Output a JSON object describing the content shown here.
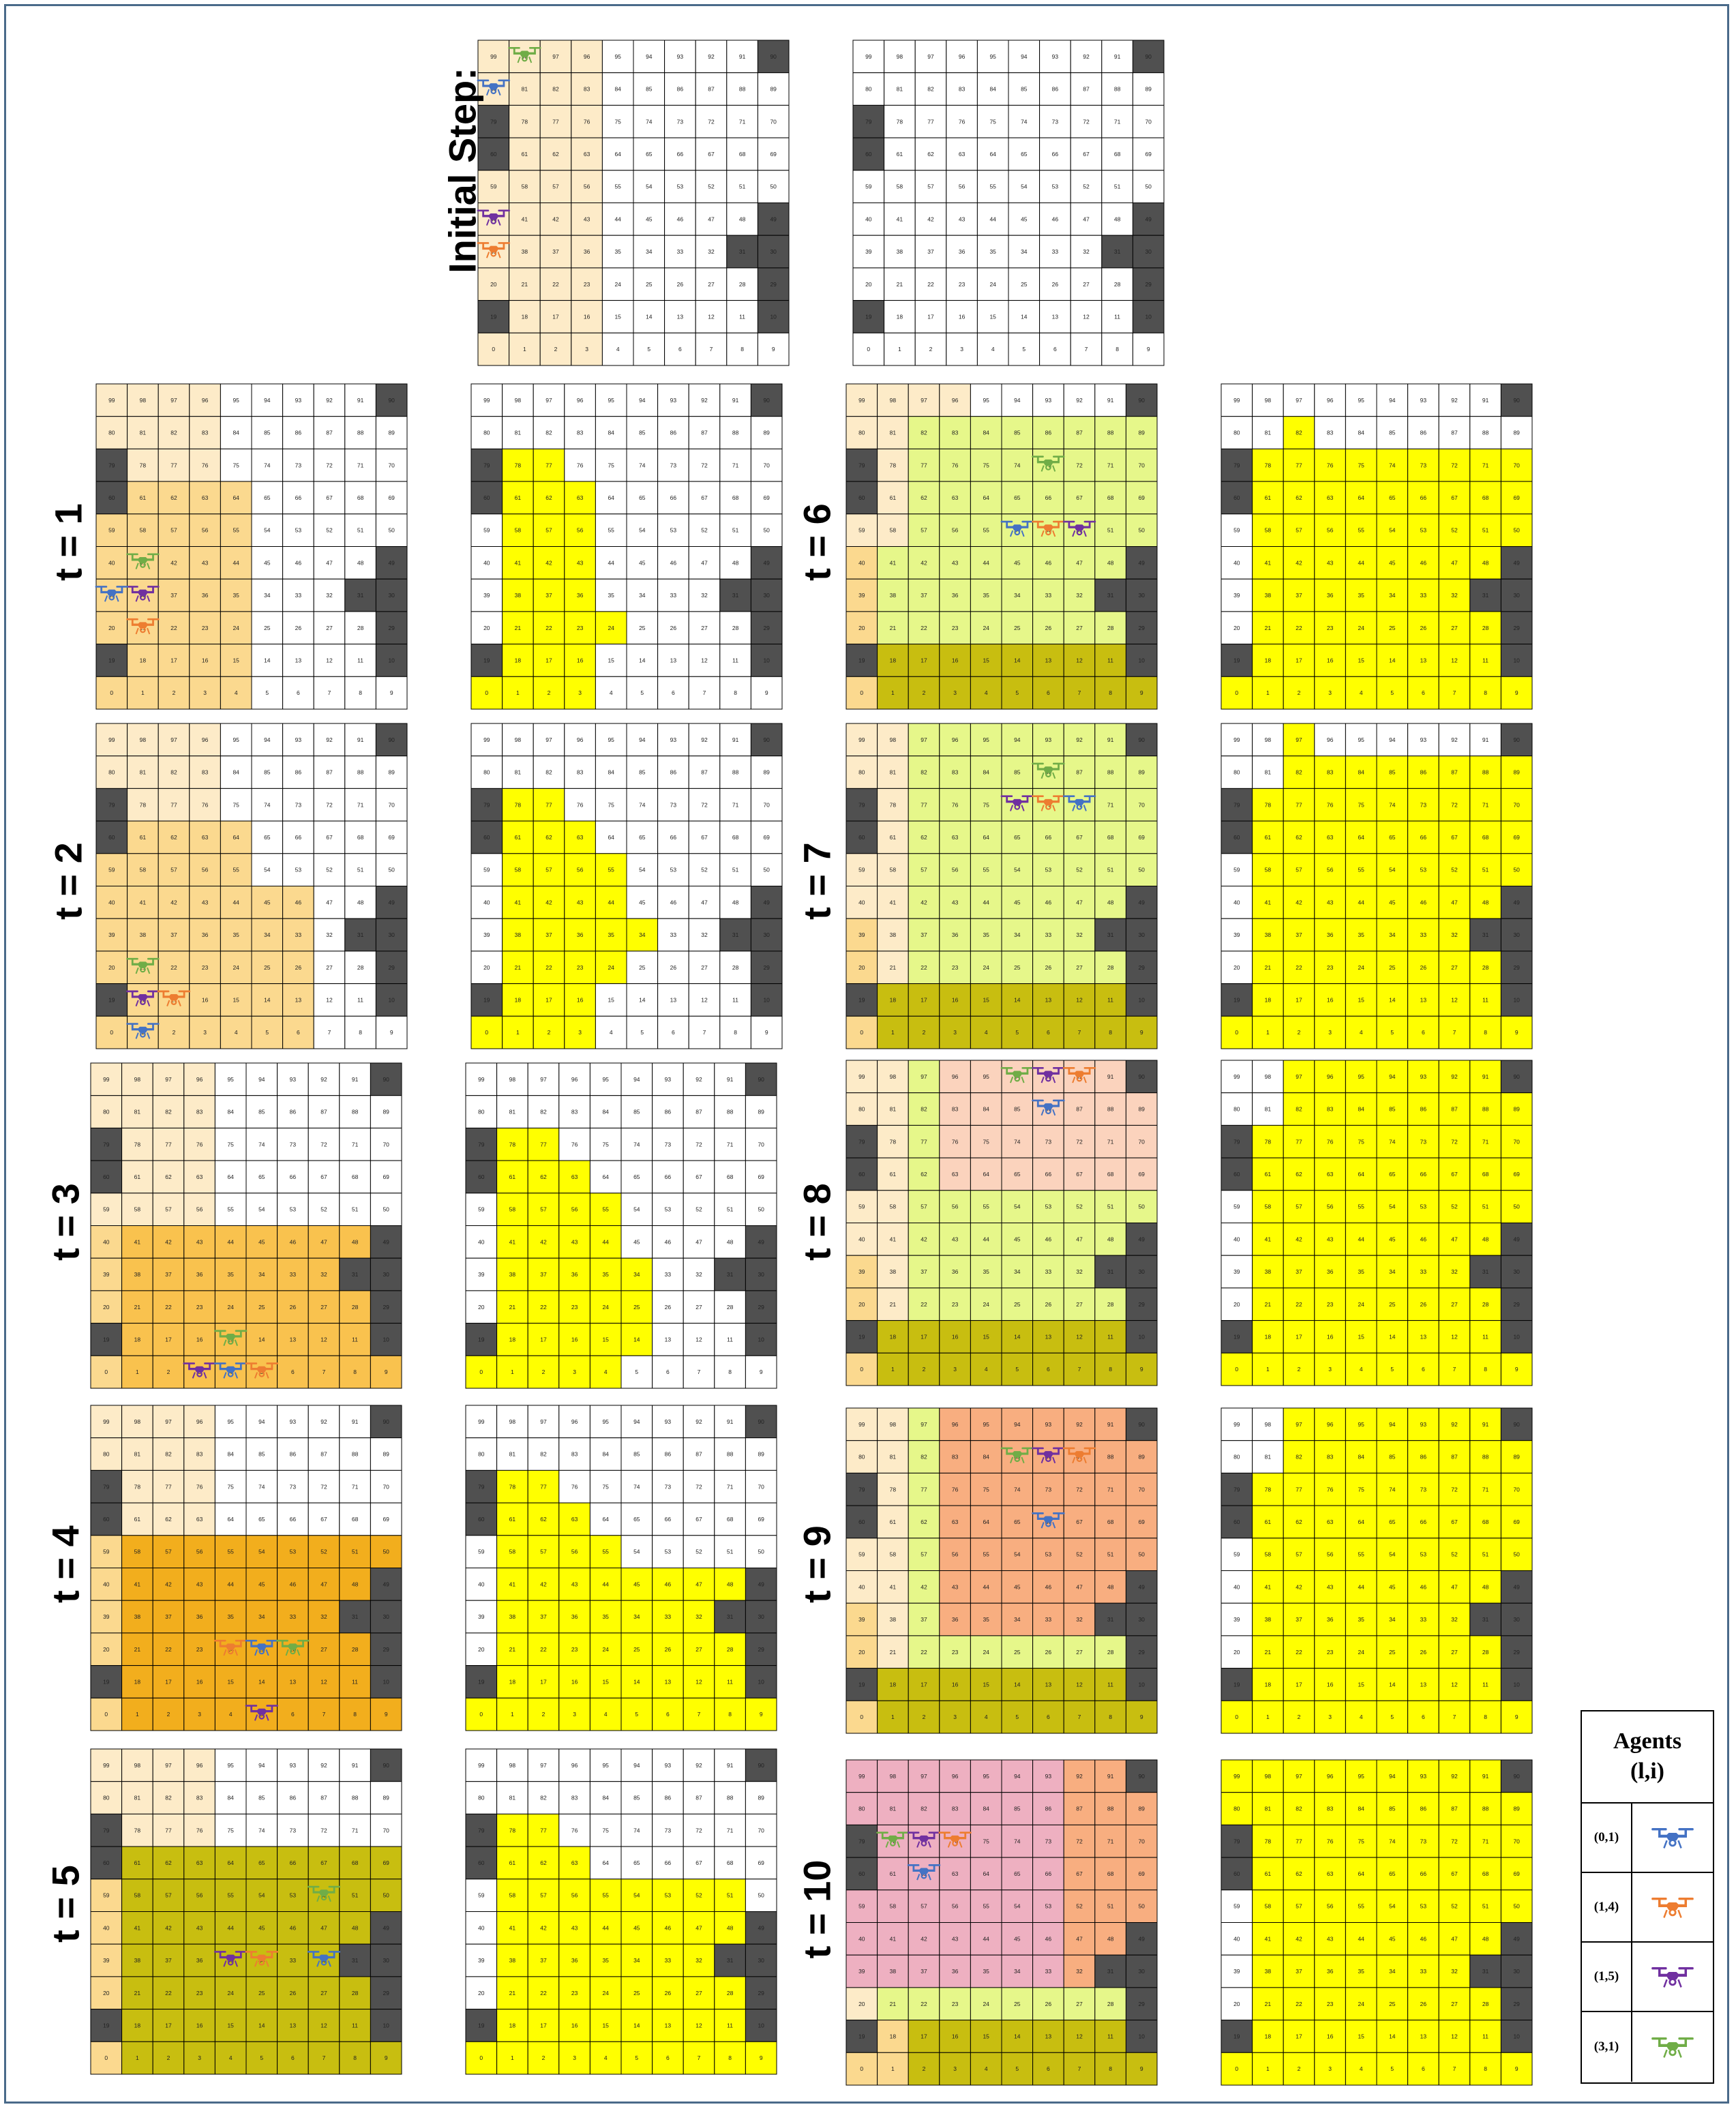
{
  "initial_label": "Initial Step:",
  "step_labels": [
    "t = 1",
    "t = 2",
    "t = 3",
    "t = 4",
    "t = 5",
    "t = 6",
    "t = 7",
    "t = 8",
    "t = 9",
    "t = 10"
  ],
  "legend": {
    "title_line1": "Agents",
    "title_line2": "(l,i)",
    "agents": [
      {
        "id": "(0,1)",
        "color": "#4472C4",
        "icon": "drone-icon"
      },
      {
        "id": "(1,4)",
        "color": "#ED7D31",
        "icon": "drone-icon"
      },
      {
        "id": "(1,5)",
        "color": "#7030A0",
        "icon": "drone-icon"
      },
      {
        "id": "(3,1)",
        "color": "#70AD47",
        "icon": "drone-icon"
      }
    ]
  },
  "grid": {
    "rows": 10,
    "cols": 10,
    "cell_numbers_top_to_bottom": [
      [
        99,
        98,
        97,
        96,
        95,
        94,
        93,
        92,
        91,
        90
      ],
      [
        80,
        81,
        82,
        83,
        84,
        85,
        86,
        87,
        88,
        89
      ],
      [
        79,
        78,
        77,
        76,
        75,
        74,
        73,
        72,
        71,
        70
      ],
      [
        60,
        61,
        62,
        63,
        64,
        65,
        66,
        67,
        68,
        69
      ],
      [
        59,
        58,
        57,
        56,
        55,
        54,
        53,
        52,
        51,
        50
      ],
      [
        40,
        41,
        42,
        43,
        44,
        45,
        46,
        47,
        48,
        49
      ],
      [
        39,
        38,
        37,
        36,
        35,
        34,
        33,
        32,
        31,
        30
      ],
      [
        20,
        21,
        22,
        23,
        24,
        25,
        26,
        27,
        28,
        29
      ],
      [
        19,
        18,
        17,
        16,
        15,
        14,
        13,
        12,
        11,
        10
      ],
      [
        0,
        1,
        2,
        3,
        4,
        5,
        6,
        7,
        8,
        9
      ]
    ],
    "obstacles": [
      90,
      79,
      60,
      49,
      31,
      30,
      29,
      19,
      10
    ],
    "obstacle_color": "#505050",
    "visited_color": "#FFFF00"
  },
  "region_colors": [
    "#FDEBC8",
    "#FBD98F",
    "#F9C24E",
    "#F2AE1D",
    "#DDA104",
    "#C8BE10",
    "#E6F78A",
    "#FBD3BD",
    "#F8AE80",
    "#EEB0C1"
  ],
  "panels": [
    {
      "step": "initial",
      "regions": [
        {
          "c": 0,
          "cells": [
            99,
            80,
            79,
            60,
            59,
            40,
            39,
            20,
            19,
            0,
            98,
            81,
            78,
            61,
            58,
            41,
            38,
            21,
            18,
            1,
            97,
            82,
            77,
            62,
            57,
            42,
            37,
            22,
            17,
            2,
            96,
            83,
            76,
            63,
            56,
            43,
            36,
            23,
            16,
            3
          ]
        }
      ],
      "agents": [
        {
          "a": 3,
          "cell": 98
        },
        {
          "a": 0,
          "cell": 80
        },
        {
          "a": 2,
          "cell": 40
        },
        {
          "a": 1,
          "cell": 39
        }
      ],
      "visited": []
    },
    {
      "step": "t = 1",
      "agents": [
        {
          "a": 3,
          "cell": 41
        },
        {
          "a": 2,
          "cell": 38
        },
        {
          "a": 0,
          "cell": 39
        },
        {
          "a": 1,
          "cell": 21
        }
      ],
      "visited": [
        0,
        1,
        2,
        3,
        18,
        17,
        16,
        21,
        22,
        23,
        24,
        38,
        37,
        36,
        41,
        42,
        43,
        58,
        57,
        56,
        61,
        62,
        63,
        78,
        77
      ]
    },
    {
      "step": "t = 2",
      "agents": [
        {
          "a": 3,
          "cell": 21
        },
        {
          "a": 2,
          "cell": 18
        },
        {
          "a": 1,
          "cell": 17
        },
        {
          "a": 0,
          "cell": 1
        }
      ],
      "visited": [
        0,
        1,
        2,
        3,
        18,
        17,
        16,
        21,
        22,
        23,
        24,
        38,
        37,
        36,
        35,
        34,
        41,
        42,
        43,
        44,
        58,
        57,
        56,
        55,
        61,
        62,
        63,
        78,
        77
      ]
    },
    {
      "step": "t = 3",
      "agents": [
        {
          "a": 3,
          "cell": 15
        },
        {
          "a": 2,
          "cell": 3
        },
        {
          "a": 0,
          "cell": 4
        },
        {
          "a": 1,
          "cell": 5
        }
      ],
      "visited": [
        0,
        1,
        2,
        3,
        4,
        18,
        17,
        16,
        15,
        14,
        21,
        22,
        23,
        24,
        25,
        38,
        37,
        36,
        35,
        34,
        41,
        42,
        43,
        44,
        58,
        57,
        56,
        55,
        61,
        62,
        63,
        78,
        77
      ]
    },
    {
      "step": "t = 4",
      "agents": [
        {
          "a": 1,
          "cell": 24
        },
        {
          "a": 0,
          "cell": 25
        },
        {
          "a": 3,
          "cell": 26
        },
        {
          "a": 2,
          "cell": 5
        }
      ],
      "visited": [
        0,
        1,
        2,
        3,
        4,
        5,
        6,
        7,
        8,
        9,
        18,
        17,
        16,
        15,
        14,
        13,
        12,
        11,
        21,
        22,
        23,
        24,
        25,
        26,
        27,
        28,
        38,
        37,
        36,
        35,
        34,
        33,
        32,
        41,
        42,
        43,
        44,
        45,
        46,
        47,
        48,
        58,
        57,
        56,
        55,
        61,
        62,
        63,
        78,
        77
      ]
    },
    {
      "step": "t = 5",
      "agents": [
        {
          "a": 3,
          "cell": 52
        },
        {
          "a": 2,
          "cell": 35
        },
        {
          "a": 1,
          "cell": 34
        },
        {
          "a": 0,
          "cell": 32
        }
      ],
      "visited": [
        0,
        1,
        2,
        3,
        4,
        5,
        6,
        7,
        8,
        9,
        18,
        17,
        16,
        15,
        14,
        13,
        12,
        11,
        21,
        22,
        23,
        24,
        25,
        26,
        27,
        28,
        38,
        37,
        36,
        35,
        34,
        33,
        32,
        41,
        42,
        43,
        44,
        45,
        46,
        47,
        48,
        58,
        57,
        56,
        55,
        54,
        53,
        52,
        51,
        61,
        62,
        63,
        78,
        77
      ]
    },
    {
      "step": "t = 6",
      "agents": [
        {
          "a": 3,
          "cell": 73
        },
        {
          "a": 0,
          "cell": 54
        },
        {
          "a": 1,
          "cell": 53
        },
        {
          "a": 2,
          "cell": 52
        }
      ],
      "visited": [
        0,
        1,
        2,
        3,
        4,
        5,
        6,
        7,
        8,
        9,
        18,
        17,
        16,
        15,
        14,
        13,
        12,
        11,
        21,
        22,
        23,
        24,
        25,
        26,
        27,
        28,
        38,
        37,
        36,
        35,
        34,
        33,
        32,
        41,
        42,
        43,
        44,
        45,
        46,
        47,
        48,
        58,
        57,
        56,
        55,
        54,
        53,
        52,
        51,
        50,
        61,
        62,
        63,
        64,
        65,
        66,
        67,
        68,
        69,
        78,
        77,
        76,
        75,
        74,
        73,
        72,
        71,
        70,
        82
      ]
    },
    {
      "step": "t = 7",
      "agents": [
        {
          "a": 3,
          "cell": 86
        },
        {
          "a": 2,
          "cell": 74
        },
        {
          "a": 1,
          "cell": 73
        },
        {
          "a": 0,
          "cell": 72
        }
      ],
      "visited": [
        0,
        1,
        2,
        3,
        4,
        5,
        6,
        7,
        8,
        9,
        18,
        17,
        16,
        15,
        14,
        13,
        12,
        11,
        21,
        22,
        23,
        24,
        25,
        26,
        27,
        28,
        38,
        37,
        36,
        35,
        34,
        33,
        32,
        41,
        42,
        43,
        44,
        45,
        46,
        47,
        48,
        58,
        57,
        56,
        55,
        54,
        53,
        52,
        51,
        50,
        61,
        62,
        63,
        64,
        65,
        66,
        67,
        68,
        69,
        78,
        77,
        76,
        75,
        74,
        73,
        72,
        71,
        70,
        82,
        83,
        84,
        85,
        86,
        87,
        88,
        89,
        97
      ]
    },
    {
      "step": "t = 8",
      "agents": [
        {
          "a": 3,
          "cell": 94
        },
        {
          "a": 2,
          "cell": 93
        },
        {
          "a": 1,
          "cell": 92
        },
        {
          "a": 0,
          "cell": 86
        }
      ],
      "visited": [
        0,
        1,
        2,
        3,
        4,
        5,
        6,
        7,
        8,
        9,
        18,
        17,
        16,
        15,
        14,
        13,
        12,
        11,
        21,
        22,
        23,
        24,
        25,
        26,
        27,
        28,
        38,
        37,
        36,
        35,
        34,
        33,
        32,
        41,
        42,
        43,
        44,
        45,
        46,
        47,
        48,
        58,
        57,
        56,
        55,
        54,
        53,
        52,
        51,
        50,
        61,
        62,
        63,
        64,
        65,
        66,
        67,
        68,
        69,
        78,
        77,
        76,
        75,
        74,
        73,
        72,
        71,
        70,
        82,
        83,
        84,
        85,
        86,
        87,
        88,
        89,
        97,
        96,
        95,
        94,
        93,
        92,
        91
      ]
    },
    {
      "step": "t = 9",
      "agents": [
        {
          "a": 3,
          "cell": 85
        },
        {
          "a": 2,
          "cell": 86
        },
        {
          "a": 1,
          "cell": 87
        },
        {
          "a": 0,
          "cell": 66
        }
      ],
      "visited": [
        0,
        1,
        2,
        3,
        4,
        5,
        6,
        7,
        8,
        9,
        18,
        17,
        16,
        15,
        14,
        13,
        12,
        11,
        21,
        22,
        23,
        24,
        25,
        26,
        27,
        28,
        38,
        37,
        36,
        35,
        34,
        33,
        32,
        41,
        42,
        43,
        44,
        45,
        46,
        47,
        48,
        58,
        57,
        56,
        55,
        54,
        53,
        52,
        51,
        50,
        61,
        62,
        63,
        64,
        65,
        66,
        67,
        68,
        69,
        78,
        77,
        76,
        75,
        74,
        73,
        72,
        71,
        70,
        82,
        83,
        84,
        85,
        86,
        87,
        88,
        89,
        97,
        96,
        95,
        94,
        93,
        92,
        91
      ]
    },
    {
      "step": "t = 10",
      "agents": [
        {
          "a": 3,
          "cell": 78
        },
        {
          "a": 2,
          "cell": 77
        },
        {
          "a": 1,
          "cell": 76
        },
        {
          "a": 0,
          "cell": 62
        }
      ],
      "visited": [
        0,
        1,
        2,
        3,
        4,
        5,
        6,
        7,
        8,
        9,
        18,
        17,
        16,
        15,
        14,
        13,
        12,
        11,
        21,
        22,
        23,
        24,
        25,
        26,
        27,
        28,
        38,
        37,
        36,
        35,
        34,
        33,
        32,
        41,
        42,
        43,
        44,
        45,
        46,
        47,
        48,
        58,
        57,
        56,
        55,
        54,
        53,
        52,
        51,
        50,
        61,
        62,
        63,
        64,
        65,
        66,
        67,
        68,
        69,
        78,
        77,
        76,
        75,
        74,
        73,
        72,
        71,
        70,
        99,
        98,
        97,
        96,
        95,
        94,
        93,
        92,
        91,
        80,
        81,
        82,
        83,
        84,
        85,
        86,
        87,
        88,
        89
      ]
    }
  ]
}
